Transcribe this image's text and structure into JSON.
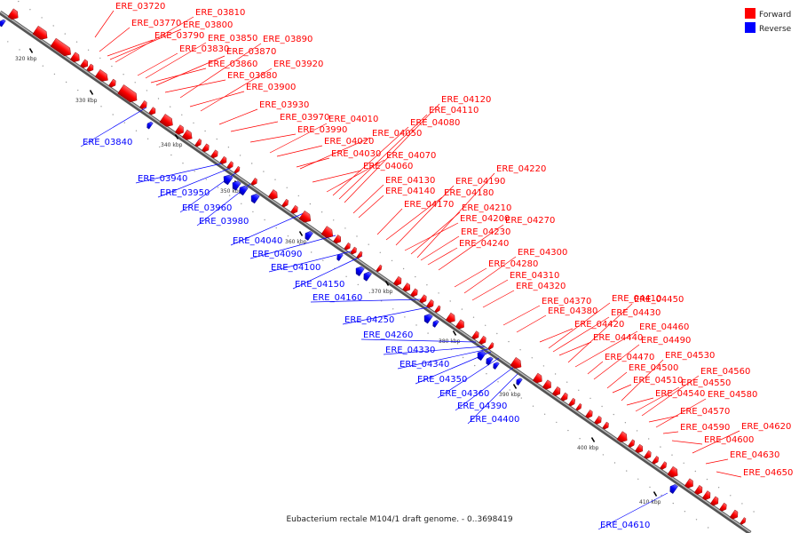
{
  "caption": "Eubacterium rectale M104/1 draft genome. - 0..3698419",
  "legend": [
    {
      "label": "Forward",
      "color": "#ff0000"
    },
    {
      "label": "Reverse",
      "color": "#0000ff"
    }
  ],
  "colors": {
    "backbone": "#888888",
    "forward_label": "#ff0000",
    "reverse_label": "#0000ff"
  },
  "ticks": [
    "320 kbp",
    "330 kbp",
    "340 kbp",
    "350 kbp",
    "360 kbp",
    "370 kbp",
    "380 kbp",
    "390 kbp",
    "400 kbp",
    "410 kbp"
  ],
  "forward_genes": [
    "ERE_03720",
    "ERE_03770",
    "ERE_03790",
    "ERE_03800",
    "ERE_03810",
    "ERE_03830",
    "ERE_03850",
    "ERE_03860",
    "ERE_03870",
    "ERE_03880",
    "ERE_03890",
    "ERE_03900",
    "ERE_03920",
    "ERE_03930",
    "ERE_03970",
    "ERE_03990",
    "ERE_04010",
    "ERE_04020",
    "ERE_04030",
    "ERE_04050",
    "ERE_04060",
    "ERE_04070",
    "ERE_04080",
    "ERE_04110",
    "ERE_04120",
    "ERE_04130",
    "ERE_04140",
    "ERE_04170",
    "ERE_04180",
    "ERE_04190",
    "ERE_04200",
    "ERE_04210",
    "ERE_04220",
    "ERE_04230",
    "ERE_04240",
    "ERE_04270",
    "ERE_04280",
    "ERE_04300",
    "ERE_04310",
    "ERE_04320",
    "ERE_04370",
    "ERE_04380",
    "ERE_04410",
    "ERE_04420",
    "ERE_04430",
    "ERE_04440",
    "ERE_04450",
    "ERE_04460",
    "ERE_04470",
    "ERE_04490",
    "ERE_04500",
    "ERE_04510",
    "ERE_04530",
    "ERE_04540",
    "ERE_04550",
    "ERE_04560",
    "ERE_04570",
    "ERE_04580",
    "ERE_04590",
    "ERE_04600",
    "ERE_04620",
    "ERE_04630",
    "ERE_04650"
  ],
  "reverse_genes": [
    "ERE_03840",
    "ERE_03940",
    "ERE_03950",
    "ERE_03960",
    "ERE_03980",
    "ERE_04040",
    "ERE_04090",
    "ERE_04100",
    "ERE_04150",
    "ERE_04160",
    "ERE_04250",
    "ERE_04260",
    "ERE_04330",
    "ERE_04340",
    "ERE_04350",
    "ERE_04360",
    "ERE_04390",
    "ERE_04400",
    "ERE_04610"
  ]
}
